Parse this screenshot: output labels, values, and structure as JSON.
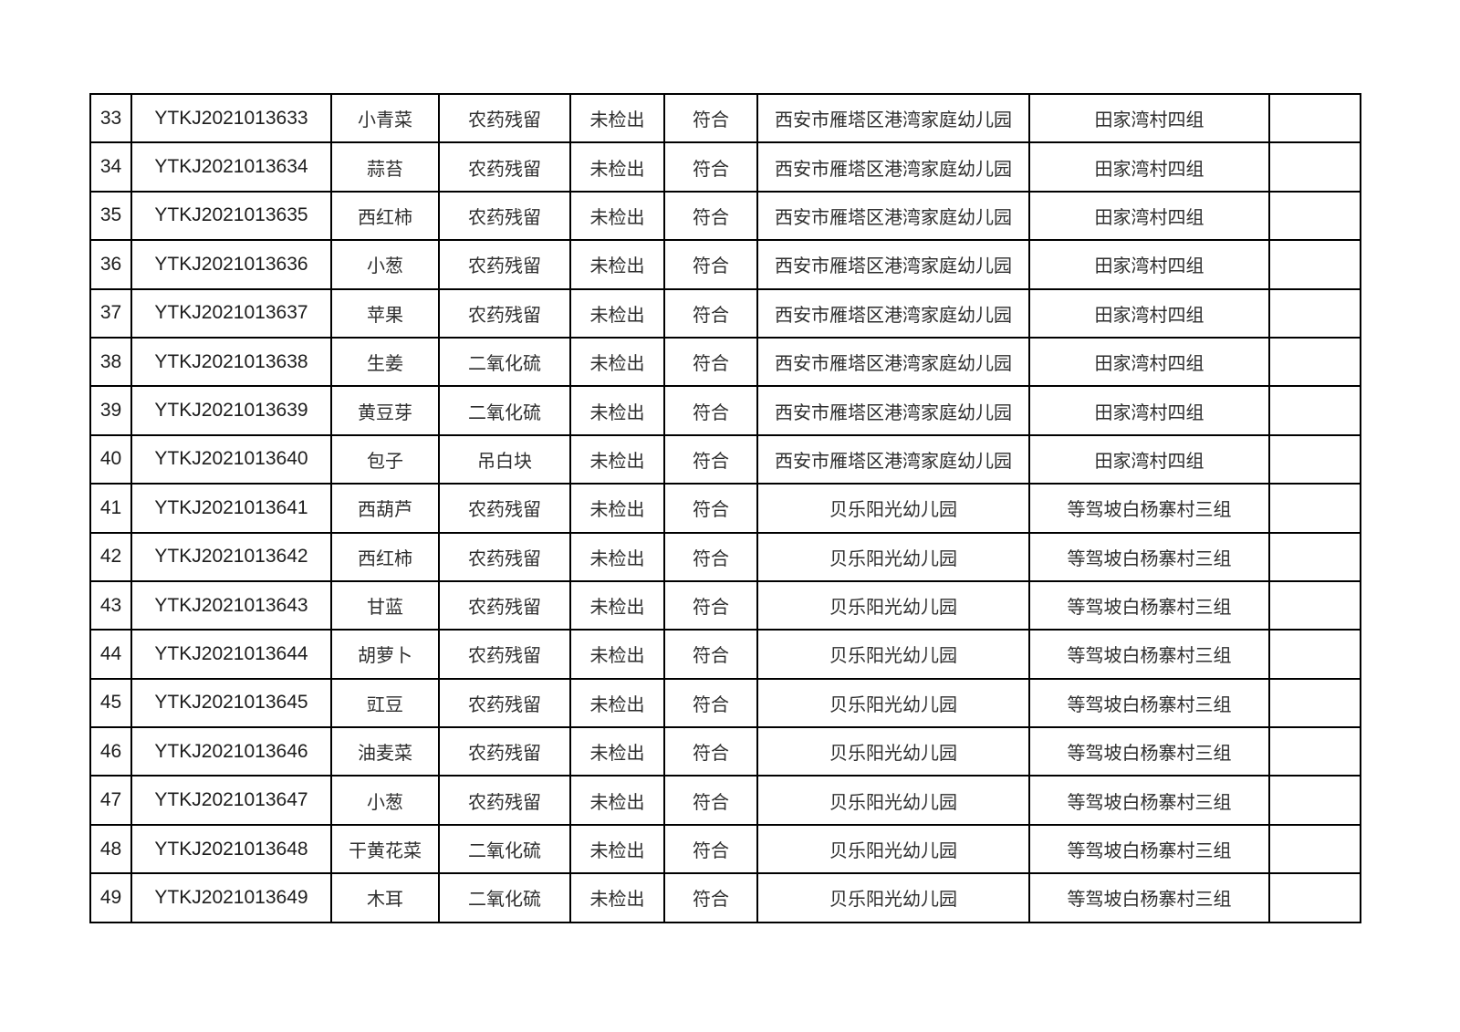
{
  "page": {
    "background_color": "#ffffff",
    "border_color": "#000000",
    "id_text_color": "#1c1c1c",
    "cjk_text_color": "#2e2e2e"
  },
  "table": {
    "rows": [
      [
        "33",
        "YTKJ2021013633",
        "小青菜",
        "农药残留",
        "未检出",
        "符合",
        "西安市雁塔区港湾家庭幼儿园",
        "田家湾村四组",
        ""
      ],
      [
        "34",
        "YTKJ2021013634",
        "蒜苔",
        "农药残留",
        "未检出",
        "符合",
        "西安市雁塔区港湾家庭幼儿园",
        "田家湾村四组",
        ""
      ],
      [
        "35",
        "YTKJ2021013635",
        "西红柿",
        "农药残留",
        "未检出",
        "符合",
        "西安市雁塔区港湾家庭幼儿园",
        "田家湾村四组",
        ""
      ],
      [
        "36",
        "YTKJ2021013636",
        "小葱",
        "农药残留",
        "未检出",
        "符合",
        "西安市雁塔区港湾家庭幼儿园",
        "田家湾村四组",
        ""
      ],
      [
        "37",
        "YTKJ2021013637",
        "苹果",
        "农药残留",
        "未检出",
        "符合",
        "西安市雁塔区港湾家庭幼儿园",
        "田家湾村四组",
        ""
      ],
      [
        "38",
        "YTKJ2021013638",
        "生姜",
        "二氧化硫",
        "未检出",
        "符合",
        "西安市雁塔区港湾家庭幼儿园",
        "田家湾村四组",
        ""
      ],
      [
        "39",
        "YTKJ2021013639",
        "黄豆芽",
        "二氧化硫",
        "未检出",
        "符合",
        "西安市雁塔区港湾家庭幼儿园",
        "田家湾村四组",
        ""
      ],
      [
        "40",
        "YTKJ2021013640",
        "包子",
        "吊白块",
        "未检出",
        "符合",
        "西安市雁塔区港湾家庭幼儿园",
        "田家湾村四组",
        ""
      ],
      [
        "41",
        "YTKJ2021013641",
        "西葫芦",
        "农药残留",
        "未检出",
        "符合",
        "贝乐阳光幼儿园",
        "等驾坡白杨寨村三组",
        ""
      ],
      [
        "42",
        "YTKJ2021013642",
        "西红柿",
        "农药残留",
        "未检出",
        "符合",
        "贝乐阳光幼儿园",
        "等驾坡白杨寨村三组",
        ""
      ],
      [
        "43",
        "YTKJ2021013643",
        "甘蓝",
        "农药残留",
        "未检出",
        "符合",
        "贝乐阳光幼儿园",
        "等驾坡白杨寨村三组",
        ""
      ],
      [
        "44",
        "YTKJ2021013644",
        "胡萝卜",
        "农药残留",
        "未检出",
        "符合",
        "贝乐阳光幼儿园",
        "等驾坡白杨寨村三组",
        ""
      ],
      [
        "45",
        "YTKJ2021013645",
        "豇豆",
        "农药残留",
        "未检出",
        "符合",
        "贝乐阳光幼儿园",
        "等驾坡白杨寨村三组",
        ""
      ],
      [
        "46",
        "YTKJ2021013646",
        "油麦菜",
        "农药残留",
        "未检出",
        "符合",
        "贝乐阳光幼儿园",
        "等驾坡白杨寨村三组",
        ""
      ],
      [
        "47",
        "YTKJ2021013647",
        "小葱",
        "农药残留",
        "未检出",
        "符合",
        "贝乐阳光幼儿园",
        "等驾坡白杨寨村三组",
        ""
      ],
      [
        "48",
        "YTKJ2021013648",
        "干黄花菜",
        "二氧化硫",
        "未检出",
        "符合",
        "贝乐阳光幼儿园",
        "等驾坡白杨寨村三组",
        ""
      ],
      [
        "49",
        "YTKJ2021013649",
        "木耳",
        "二氧化硫",
        "未检出",
        "符合",
        "贝乐阳光幼儿园",
        "等驾坡白杨寨村三组",
        ""
      ]
    ]
  }
}
